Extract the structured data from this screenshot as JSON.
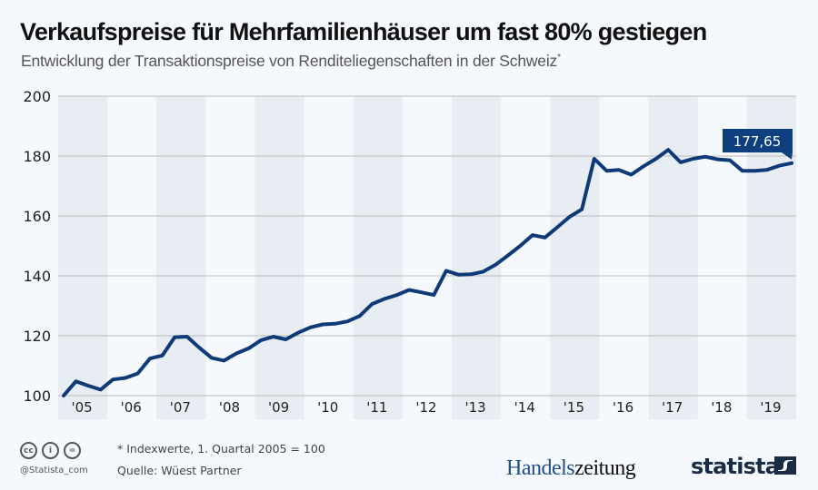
{
  "title": "Verkaufspreise für Mehrfamilienhäuser um fast 80% gestiegen",
  "subtitle": "Entwicklung der Transaktionspreise von Renditeliegenschaften in der Schweiz",
  "subtitle_marker": "*",
  "footer": {
    "note": "* Indexwerte, 1. Quartal 2005 = 100",
    "source": "Quelle: Wüest Partner",
    "handle": "@Statista_com",
    "license_icons": [
      "cc-icon",
      "by-icon",
      "nd-icon"
    ],
    "license_glyphs": [
      "cc",
      "i",
      "="
    ],
    "partner_logo_part1": "Handels",
    "partner_logo_part2": "zeitung",
    "brand_logo": "statista"
  },
  "colors": {
    "line": "#0e3a78",
    "label_bg": "#0e3f7f",
    "band": "#e8edf4",
    "background": "#f5f8fc",
    "grid": "#bcbcbc"
  },
  "chart_data": {
    "type": "line",
    "title": "Verkaufspreise für Mehrfamilienhäuser um fast 80% gestiegen",
    "ylim": [
      100,
      200
    ],
    "yticks": [
      100,
      120,
      140,
      160,
      180,
      200
    ],
    "xtick_labels": [
      "'05",
      "'06",
      "'07",
      "'08",
      "'09",
      "'10",
      "'11",
      "'12",
      "'13",
      "'14",
      "'15",
      "'16",
      "'17",
      "'18",
      "'19"
    ],
    "grid": true,
    "alternating_year_bands": true,
    "frequency": "quarterly",
    "x": [
      "2005 Q1",
      "2005 Q2",
      "2005 Q3",
      "2005 Q4",
      "2006 Q1",
      "2006 Q2",
      "2006 Q3",
      "2006 Q4",
      "2007 Q1",
      "2007 Q2",
      "2007 Q3",
      "2007 Q4",
      "2008 Q1",
      "2008 Q2",
      "2008 Q3",
      "2008 Q4",
      "2009 Q1",
      "2009 Q2",
      "2009 Q3",
      "2009 Q4",
      "2010 Q1",
      "2010 Q2",
      "2010 Q3",
      "2010 Q4",
      "2011 Q1",
      "2011 Q2",
      "2011 Q3",
      "2011 Q4",
      "2012 Q1",
      "2012 Q2",
      "2012 Q3",
      "2012 Q4",
      "2013 Q1",
      "2013 Q2",
      "2013 Q3",
      "2013 Q4",
      "2014 Q1",
      "2014 Q2",
      "2014 Q3",
      "2014 Q4",
      "2015 Q1",
      "2015 Q2",
      "2015 Q3",
      "2015 Q4",
      "2016 Q1",
      "2016 Q2",
      "2016 Q3",
      "2016 Q4",
      "2017 Q1",
      "2017 Q2",
      "2017 Q3",
      "2017 Q4",
      "2018 Q1",
      "2018 Q2",
      "2018 Q3",
      "2018 Q4",
      "2019 Q1",
      "2019 Q2",
      "2019 Q3",
      "2019 Q4"
    ],
    "values": [
      100,
      104.8,
      103.3,
      102.0,
      105.4,
      105.9,
      107.4,
      112.4,
      113.4,
      119.5,
      119.7,
      116.0,
      112.6,
      111.7,
      114.1,
      115.8,
      118.5,
      119.7,
      118.8,
      121.0,
      122.8,
      123.8,
      124.0,
      124.8,
      126.6,
      130.6,
      132.3,
      133.6,
      135.3,
      134.5,
      133.6,
      141.7,
      140.4,
      140.5,
      141.4,
      143.7,
      146.8,
      150.0,
      153.6,
      152.8,
      156.2,
      159.7,
      162.2,
      179.1,
      175.1,
      175.4,
      173.8,
      176.6,
      179.1,
      182.1,
      177.9,
      179.1,
      179.8,
      178.9,
      178.6,
      175.1,
      175.1,
      175.4,
      176.8,
      177.65
    ],
    "annotation": "177,65"
  }
}
